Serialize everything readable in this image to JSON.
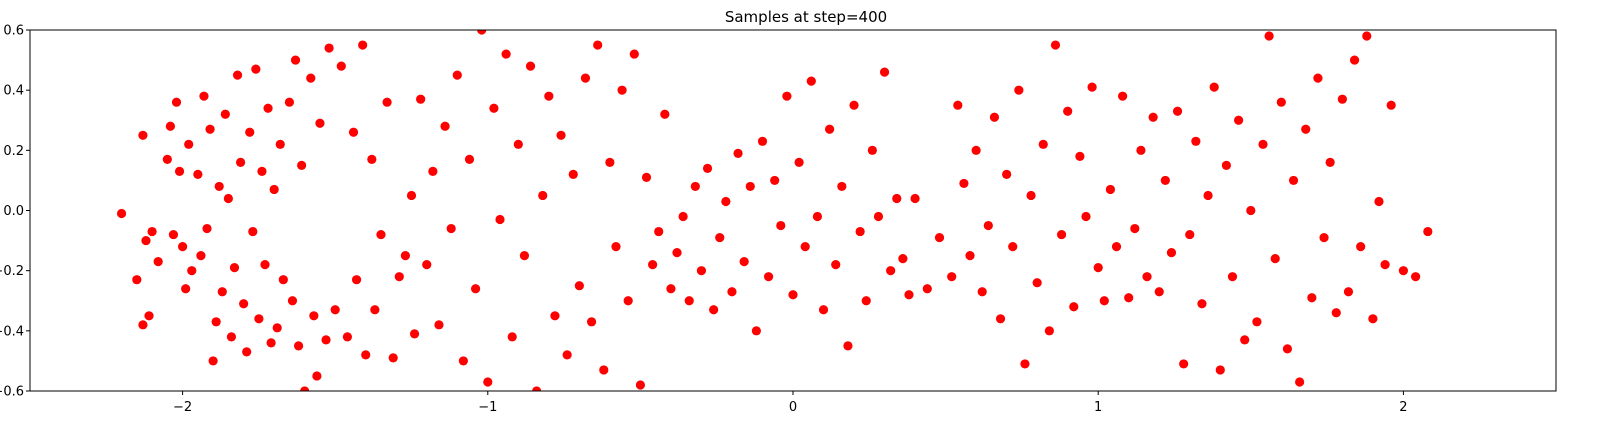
{
  "chart_data": {
    "type": "scatter",
    "title": "Samples at step=400",
    "xlabel": "",
    "ylabel": "",
    "xlim": [
      -2.5,
      2.5
    ],
    "ylim": [
      -0.6,
      0.6
    ],
    "xticks": [
      -2,
      -1,
      0,
      1,
      2
    ],
    "yticks": [
      -0.6,
      -0.4,
      -0.2,
      0.0,
      0.2,
      0.4,
      0.6
    ],
    "xtick_labels": [
      "−2",
      "−1",
      "0",
      "1",
      "2"
    ],
    "ytick_labels": [
      "−0.6",
      "−0.4",
      "−0.2",
      "0.0",
      "0.2",
      "0.4",
      "0.6"
    ],
    "grid": false,
    "series": [
      {
        "color": "#ff0000",
        "marker": "circle",
        "points": [
          [
            -2.2,
            -0.01
          ],
          [
            -2.15,
            -0.23
          ],
          [
            -2.13,
            0.25
          ],
          [
            -2.13,
            -0.38
          ],
          [
            -2.12,
            -0.1
          ],
          [
            -2.11,
            -0.35
          ],
          [
            -2.1,
            -0.07
          ],
          [
            -2.08,
            -0.17
          ],
          [
            -2.05,
            0.17
          ],
          [
            -2.04,
            0.28
          ],
          [
            -2.03,
            -0.08
          ],
          [
            -2.02,
            0.36
          ],
          [
            -2.01,
            0.13
          ],
          [
            -2.0,
            -0.12
          ],
          [
            -1.99,
            -0.26
          ],
          [
            -1.98,
            0.22
          ],
          [
            -1.97,
            -0.2
          ],
          [
            -1.95,
            0.12
          ],
          [
            -1.94,
            -0.15
          ],
          [
            -1.93,
            0.38
          ],
          [
            -1.92,
            -0.06
          ],
          [
            -1.91,
            0.27
          ],
          [
            -1.9,
            -0.5
          ],
          [
            -1.89,
            -0.37
          ],
          [
            -1.88,
            0.08
          ],
          [
            -1.87,
            -0.27
          ],
          [
            -1.86,
            0.32
          ],
          [
            -1.85,
            0.04
          ],
          [
            -1.84,
            -0.42
          ],
          [
            -1.83,
            -0.19
          ],
          [
            -1.82,
            0.45
          ],
          [
            -1.81,
            0.16
          ],
          [
            -1.8,
            -0.31
          ],
          [
            -1.79,
            -0.47
          ],
          [
            -1.78,
            0.26
          ],
          [
            -1.77,
            -0.07
          ],
          [
            -1.76,
            0.47
          ],
          [
            -1.75,
            -0.36
          ],
          [
            -1.74,
            0.13
          ],
          [
            -1.73,
            -0.18
          ],
          [
            -1.72,
            0.34
          ],
          [
            -1.71,
            -0.44
          ],
          [
            -1.7,
            0.07
          ],
          [
            -1.69,
            -0.39
          ],
          [
            -1.68,
            0.22
          ],
          [
            -1.67,
            -0.23
          ],
          [
            -1.65,
            0.36
          ],
          [
            -1.64,
            -0.3
          ],
          [
            -1.63,
            0.5
          ],
          [
            -1.62,
            -0.45
          ],
          [
            -1.61,
            0.15
          ],
          [
            -1.6,
            -0.6
          ],
          [
            -1.58,
            0.44
          ],
          [
            -1.57,
            -0.35
          ],
          [
            -1.56,
            -0.55
          ],
          [
            -1.55,
            0.29
          ],
          [
            -1.53,
            -0.43
          ],
          [
            -1.52,
            0.54
          ],
          [
            -1.5,
            -0.33
          ],
          [
            -1.48,
            0.48
          ],
          [
            -1.46,
            -0.42
          ],
          [
            -1.44,
            0.26
          ],
          [
            -1.43,
            -0.23
          ],
          [
            -1.41,
            0.55
          ],
          [
            -1.4,
            -0.48
          ],
          [
            -1.38,
            0.17
          ],
          [
            -1.37,
            -0.33
          ],
          [
            -1.35,
            -0.08
          ],
          [
            -1.33,
            0.36
          ],
          [
            -1.31,
            -0.49
          ],
          [
            -1.29,
            -0.22
          ],
          [
            -1.27,
            -0.15
          ],
          [
            -1.25,
            0.05
          ],
          [
            -1.24,
            -0.41
          ],
          [
            -1.22,
            0.37
          ],
          [
            -1.2,
            -0.18
          ],
          [
            -1.18,
            0.13
          ],
          [
            -1.16,
            -0.38
          ],
          [
            -1.14,
            0.28
          ],
          [
            -1.12,
            -0.06
          ],
          [
            -1.1,
            0.45
          ],
          [
            -1.08,
            -0.5
          ],
          [
            -1.06,
            0.17
          ],
          [
            -1.04,
            -0.26
          ],
          [
            -1.02,
            0.6
          ],
          [
            -1.0,
            -0.57
          ],
          [
            -0.98,
            0.34
          ],
          [
            -0.96,
            -0.03
          ],
          [
            -0.94,
            0.52
          ],
          [
            -0.92,
            -0.42
          ],
          [
            -0.9,
            0.22
          ],
          [
            -0.88,
            -0.15
          ],
          [
            -0.86,
            0.48
          ],
          [
            -0.84,
            -0.6
          ],
          [
            -0.82,
            0.05
          ],
          [
            -0.8,
            0.38
          ],
          [
            -0.78,
            -0.35
          ],
          [
            -0.76,
            0.25
          ],
          [
            -0.74,
            -0.48
          ],
          [
            -0.72,
            0.12
          ],
          [
            -0.7,
            -0.25
          ],
          [
            -0.68,
            0.44
          ],
          [
            -0.66,
            -0.37
          ],
          [
            -0.64,
            0.55
          ],
          [
            -0.62,
            -0.53
          ],
          [
            -0.6,
            0.16
          ],
          [
            -0.58,
            -0.12
          ],
          [
            -0.56,
            0.4
          ],
          [
            -0.54,
            -0.3
          ],
          [
            -0.52,
            0.52
          ],
          [
            -0.5,
            -0.58
          ],
          [
            -0.48,
            0.11
          ],
          [
            -0.46,
            -0.18
          ],
          [
            -0.44,
            -0.07
          ],
          [
            -0.42,
            0.32
          ],
          [
            -0.4,
            -0.26
          ],
          [
            -0.38,
            -0.14
          ],
          [
            -0.36,
            -0.02
          ],
          [
            -0.34,
            -0.3
          ],
          [
            -0.32,
            0.08
          ],
          [
            -0.3,
            -0.2
          ],
          [
            -0.28,
            0.14
          ],
          [
            -0.26,
            -0.33
          ],
          [
            -0.24,
            -0.09
          ],
          [
            -0.22,
            0.03
          ],
          [
            -0.2,
            -0.27
          ],
          [
            -0.18,
            0.19
          ],
          [
            -0.16,
            -0.17
          ],
          [
            -0.14,
            0.08
          ],
          [
            -0.12,
            -0.4
          ],
          [
            -0.1,
            0.23
          ],
          [
            -0.08,
            -0.22
          ],
          [
            -0.06,
            0.1
          ],
          [
            -0.04,
            -0.05
          ],
          [
            -0.02,
            0.38
          ],
          [
            0.0,
            -0.28
          ],
          [
            0.02,
            0.16
          ],
          [
            0.04,
            -0.12
          ],
          [
            0.06,
            0.43
          ],
          [
            0.08,
            -0.02
          ],
          [
            0.1,
            -0.33
          ],
          [
            0.12,
            0.27
          ],
          [
            0.14,
            -0.18
          ],
          [
            0.16,
            0.08
          ],
          [
            0.18,
            -0.45
          ],
          [
            0.2,
            0.35
          ],
          [
            0.22,
            -0.07
          ],
          [
            0.24,
            -0.3
          ],
          [
            0.26,
            0.2
          ],
          [
            0.28,
            -0.02
          ],
          [
            0.3,
            0.46
          ],
          [
            0.32,
            -0.2
          ],
          [
            0.34,
            0.04
          ],
          [
            0.36,
            -0.16
          ],
          [
            0.38,
            -0.28
          ],
          [
            0.4,
            0.04
          ],
          [
            0.44,
            -0.26
          ],
          [
            0.48,
            -0.09
          ],
          [
            0.52,
            -0.22
          ],
          [
            0.54,
            0.35
          ],
          [
            0.56,
            0.09
          ],
          [
            0.58,
            -0.15
          ],
          [
            0.6,
            0.2
          ],
          [
            0.62,
            -0.27
          ],
          [
            0.64,
            -0.05
          ],
          [
            0.66,
            0.31
          ],
          [
            0.68,
            -0.36
          ],
          [
            0.7,
            0.12
          ],
          [
            0.72,
            -0.12
          ],
          [
            0.74,
            0.4
          ],
          [
            0.76,
            -0.51
          ],
          [
            0.78,
            0.05
          ],
          [
            0.8,
            -0.24
          ],
          [
            0.82,
            0.22
          ],
          [
            0.84,
            -0.4
          ],
          [
            0.86,
            0.55
          ],
          [
            0.88,
            -0.08
          ],
          [
            0.9,
            0.33
          ],
          [
            0.92,
            -0.32
          ],
          [
            0.94,
            0.18
          ],
          [
            0.96,
            -0.02
          ],
          [
            0.98,
            0.41
          ],
          [
            1.0,
            -0.19
          ],
          [
            1.02,
            -0.3
          ],
          [
            1.04,
            0.07
          ],
          [
            1.06,
            -0.12
          ],
          [
            1.08,
            0.38
          ],
          [
            1.1,
            -0.29
          ],
          [
            1.12,
            -0.06
          ],
          [
            1.14,
            0.2
          ],
          [
            1.16,
            -0.22
          ],
          [
            1.18,
            0.31
          ],
          [
            1.2,
            -0.27
          ],
          [
            1.22,
            0.1
          ],
          [
            1.24,
            -0.14
          ],
          [
            1.26,
            0.33
          ],
          [
            1.28,
            -0.51
          ],
          [
            1.3,
            -0.08
          ],
          [
            1.32,
            0.23
          ],
          [
            1.34,
            -0.31
          ],
          [
            1.36,
            0.05
          ],
          [
            1.38,
            0.41
          ],
          [
            1.4,
            -0.53
          ],
          [
            1.42,
            0.15
          ],
          [
            1.44,
            -0.22
          ],
          [
            1.46,
            0.3
          ],
          [
            1.48,
            -0.43
          ],
          [
            1.5,
            0.0
          ],
          [
            1.52,
            -0.37
          ],
          [
            1.54,
            0.22
          ],
          [
            1.56,
            0.58
          ],
          [
            1.58,
            -0.16
          ],
          [
            1.6,
            0.36
          ],
          [
            1.62,
            -0.46
          ],
          [
            1.64,
            0.1
          ],
          [
            1.66,
            -0.57
          ],
          [
            1.68,
            0.27
          ],
          [
            1.7,
            -0.29
          ],
          [
            1.72,
            0.44
          ],
          [
            1.74,
            -0.09
          ],
          [
            1.76,
            0.16
          ],
          [
            1.78,
            -0.34
          ],
          [
            1.8,
            0.37
          ],
          [
            1.82,
            -0.27
          ],
          [
            1.84,
            0.5
          ],
          [
            1.86,
            -0.12
          ],
          [
            1.88,
            0.58
          ],
          [
            1.9,
            -0.36
          ],
          [
            1.92,
            0.03
          ],
          [
            1.94,
            -0.18
          ],
          [
            1.96,
            0.35
          ],
          [
            2.0,
            -0.2
          ],
          [
            2.04,
            -0.22
          ],
          [
            2.08,
            -0.07
          ]
        ]
      }
    ]
  }
}
